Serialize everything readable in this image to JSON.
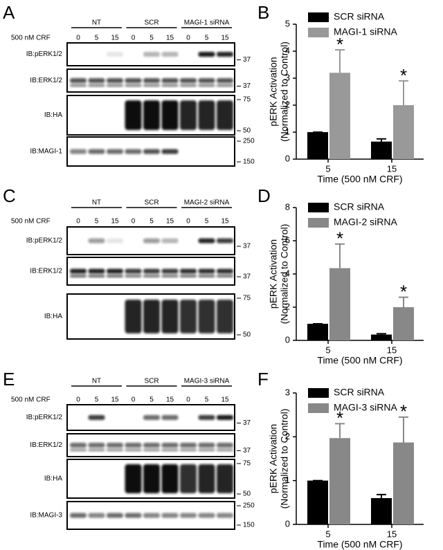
{
  "blots": [
    {
      "panel_label": "A",
      "condition": "500 nM CRF",
      "groups": [
        {
          "label": "NT",
          "times": [
            "0",
            "5",
            "15"
          ]
        },
        {
          "label": "SCR",
          "times": [
            "0",
            "5",
            "15"
          ]
        },
        {
          "label": "MAGI-1 siRNA",
          "times": [
            "0",
            "5",
            "15"
          ]
        }
      ],
      "rows": [
        {
          "label": "IB:pERK1/2",
          "markers": [
            "37"
          ]
        },
        {
          "label": "IB:ERK1/2",
          "markers": [
            "37"
          ]
        },
        {
          "label": "IB:HA",
          "markers": [
            "75",
            "50"
          ]
        },
        {
          "label": "IB:MAGI-1",
          "markers": [
            "250",
            "150"
          ]
        }
      ]
    },
    {
      "panel_label": "C",
      "condition": "500 nM CRF",
      "groups": [
        {
          "label": "NT",
          "times": [
            "0",
            "5",
            "15"
          ]
        },
        {
          "label": "SCR",
          "times": [
            "0",
            "5",
            "15"
          ]
        },
        {
          "label": "MAGI-2 siRNA",
          "times": [
            "0",
            "5",
            "15"
          ]
        }
      ],
      "rows": [
        {
          "label": "IB:pERK1/2",
          "markers": [
            "37"
          ]
        },
        {
          "label": "IB:ERK1/2",
          "markers": [
            "37"
          ]
        },
        {
          "label": "IB:HA",
          "markers": [
            "75",
            "50"
          ]
        }
      ]
    },
    {
      "panel_label": "E",
      "condition": "500 nM CRF",
      "groups": [
        {
          "label": "NT",
          "times": [
            "0",
            "5",
            "15"
          ]
        },
        {
          "label": "SCR",
          "times": [
            "0",
            "5",
            "15"
          ]
        },
        {
          "label": "MAGI-3 siRNA",
          "times": [
            "0",
            "5",
            "15"
          ]
        }
      ],
      "rows": [
        {
          "label": "IB:pERK1/2",
          "markers": [
            "37"
          ]
        },
        {
          "label": "IB:ERK1/2",
          "markers": [
            "37"
          ]
        },
        {
          "label": "IB:HA",
          "markers": [
            "75",
            "50"
          ]
        },
        {
          "label": "IB:MAGI-3",
          "markers": [
            "250",
            "150"
          ]
        }
      ]
    }
  ],
  "chart_data": [
    {
      "type": "bar",
      "panel_label": "B",
      "categories": [
        "5",
        "15"
      ],
      "series": [
        {
          "name": "SCR siRNA",
          "color": "#000000",
          "values": [
            1.0,
            0.65
          ],
          "errors": [
            0,
            0.1
          ]
        },
        {
          "name": "MAGI-1 siRNA",
          "color": "#999999",
          "values": [
            3.2,
            2.0
          ],
          "errors": [
            0.85,
            0.9
          ],
          "annotations": [
            "*",
            "*"
          ]
        }
      ],
      "ylim": [
        0,
        5
      ],
      "yticks": [
        0,
        1,
        2,
        3,
        4,
        5
      ],
      "xlabel": "Time (500 nM CRF)",
      "ylabel": [
        "pERK Activation",
        "(Normalized to Control)"
      ]
    },
    {
      "type": "bar",
      "panel_label": "D",
      "categories": [
        "5",
        "15"
      ],
      "series": [
        {
          "name": "SCR siRNA",
          "color": "#000000",
          "values": [
            1.0,
            0.35
          ],
          "errors": [
            0,
            0.05
          ]
        },
        {
          "name": "MAGI-2 siRNA",
          "color": "#888888",
          "values": [
            4.35,
            2.0
          ],
          "errors": [
            1.45,
            0.6
          ],
          "annotations": [
            "*",
            "*"
          ]
        }
      ],
      "ylim": [
        0,
        8
      ],
      "yticks": [
        0,
        2,
        4,
        6,
        8
      ],
      "xlabel": "Time (500 nM CRF)",
      "ylabel": [
        "pERK Activation",
        "(Normalized to Control)"
      ]
    },
    {
      "type": "bar",
      "panel_label": "F",
      "categories": [
        "5",
        "15"
      ],
      "series": [
        {
          "name": "SCR siRNA",
          "color": "#000000",
          "values": [
            1.0,
            0.6
          ],
          "errors": [
            0,
            0.08
          ]
        },
        {
          "name": "MAGI-3 siRNA",
          "color": "#888888",
          "values": [
            1.97,
            1.87
          ],
          "errors": [
            0.33,
            0.58
          ],
          "annotations": [
            "*",
            "*"
          ]
        }
      ],
      "ylim": [
        0,
        3
      ],
      "yticks": [
        0,
        1,
        2,
        3
      ],
      "xlabel": "Time (500 nM CRF)",
      "ylabel": [
        "pERK Activation",
        "(Normalized to Control)"
      ]
    }
  ]
}
